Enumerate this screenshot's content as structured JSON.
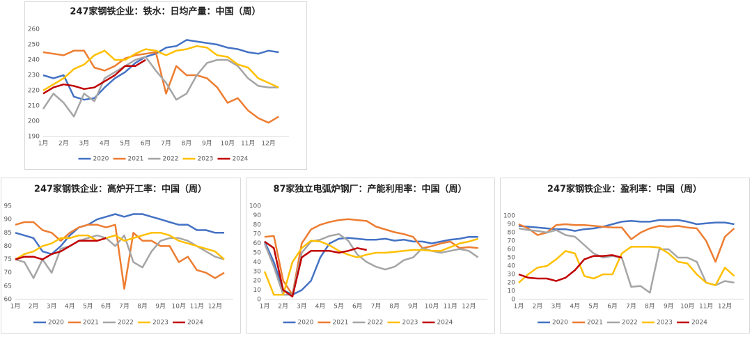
{
  "chart_data": [
    {
      "type": "line",
      "title": "247家钢铁企业：铁水：日均产量：中国（周）",
      "categories": [
        "1月",
        null,
        "2月",
        null,
        "3月",
        null,
        "4月",
        null,
        "5月",
        null,
        "6月",
        null,
        "7月",
        null,
        "8月",
        null,
        "9月",
        null,
        "10月",
        null,
        "11月",
        null,
        "12月",
        null
      ],
      "ylim": [
        190,
        260
      ],
      "yticks": [
        190,
        200,
        210,
        220,
        230,
        240,
        250,
        260
      ],
      "grid": false,
      "legend": "bottom",
      "series": [
        {
          "name": "2020",
          "color": "#4472c4",
          "values": [
            230,
            228,
            230,
            216,
            214,
            215,
            222,
            228,
            232,
            238,
            242,
            244,
            248,
            249,
            253,
            252,
            251,
            250,
            248,
            247,
            245,
            244,
            246,
            245
          ]
        },
        {
          "name": "2021",
          "color": "#ed7d31",
          "values": [
            245,
            244,
            243,
            246,
            246,
            235,
            233,
            236,
            241,
            243,
            244,
            245,
            218,
            236,
            230,
            230,
            228,
            222,
            212,
            215,
            207,
            202,
            199,
            203
          ]
        },
        {
          "name": "2022",
          "color": "#a5a5a5",
          "values": [
            208,
            218,
            212,
            203,
            218,
            213,
            228,
            232,
            236,
            240,
            242,
            233,
            225,
            214,
            218,
            230,
            238,
            240,
            240,
            236,
            228,
            223,
            222,
            222
          ]
        },
        {
          "name": "2023",
          "color": "#ffc000",
          "values": [
            220,
            224,
            228,
            234,
            237,
            243,
            246,
            240,
            240,
            244,
            247,
            246,
            243,
            246,
            247,
            249,
            248,
            243,
            242,
            237,
            235,
            228,
            225,
            222
          ]
        },
        {
          "name": "2024",
          "color": "#c00000",
          "values": [
            218,
            222,
            224,
            223,
            221,
            222,
            226,
            230,
            236,
            236,
            240,
            null,
            null,
            null,
            null,
            null,
            null,
            null,
            null,
            null,
            null,
            null,
            null,
            null
          ]
        }
      ]
    },
    {
      "type": "line",
      "title": "247家钢铁企业：高炉开工率：中国（周）",
      "categories": [
        "1月",
        null,
        "2月",
        null,
        "3月",
        null,
        "4月",
        null,
        "5月",
        null,
        "6月",
        null,
        "7月",
        null,
        "8月",
        null,
        "9月",
        null,
        "10月",
        null,
        "11月",
        null,
        "12月",
        null
      ],
      "ylim": [
        60,
        95
      ],
      "yticks": [
        60,
        65,
        70,
        75,
        80,
        85,
        90,
        95
      ],
      "grid": false,
      "legend": "bottom",
      "series": [
        {
          "name": "2020",
          "color": "#4472c4",
          "values": [
            85,
            84,
            83,
            78,
            77,
            80,
            84,
            87,
            88,
            90,
            91,
            92,
            91,
            92,
            92,
            91,
            90,
            89,
            88,
            88,
            86,
            86,
            85,
            85
          ]
        },
        {
          "name": "2021",
          "color": "#ed7d31",
          "values": [
            88,
            89,
            89,
            86,
            85,
            82,
            85,
            87,
            88,
            88,
            87,
            88,
            64,
            85,
            82,
            82,
            80,
            80,
            74,
            76,
            71,
            70,
            68,
            70
          ]
        },
        {
          "name": "2022",
          "color": "#a5a5a5",
          "values": [
            75,
            74,
            68,
            75,
            70,
            79,
            80,
            82,
            83,
            84,
            83,
            80,
            84,
            74,
            72,
            78,
            82,
            83,
            83,
            82,
            80,
            78,
            76,
            75
          ]
        },
        {
          "name": "2023",
          "color": "#ffc000",
          "values": [
            75,
            77,
            78,
            80,
            81,
            83,
            83,
            84,
            84,
            82,
            83,
            84,
            82,
            83,
            84,
            85,
            85,
            84,
            82,
            81,
            80,
            79,
            78,
            75
          ]
        },
        {
          "name": "2024",
          "color": "#c00000",
          "values": [
            75,
            76,
            76,
            75,
            77,
            78,
            80,
            82,
            82,
            82,
            83,
            null,
            null,
            null,
            null,
            null,
            null,
            null,
            null,
            null,
            null,
            null,
            null,
            null
          ]
        }
      ]
    },
    {
      "type": "line",
      "title": "87家独立电弧炉钢厂：产能利用率：中国（周）",
      "categories": [
        "1月",
        null,
        "2月",
        null,
        "3月",
        null,
        "4月",
        null,
        "5月",
        null,
        "6月",
        null,
        "7月",
        null,
        "8月",
        null,
        "9月",
        null,
        "10月",
        null,
        "11月",
        null,
        "12月",
        null
      ],
      "ylim": [
        0,
        100
      ],
      "yticks": [
        0,
        10,
        20,
        30,
        40,
        50,
        60,
        70,
        80,
        90,
        100
      ],
      "grid": false,
      "legend": "bottom",
      "series": [
        {
          "name": "2020",
          "color": "#4472c4",
          "values": [
            62,
            40,
            10,
            5,
            10,
            20,
            45,
            60,
            65,
            66,
            65,
            64,
            64,
            65,
            63,
            64,
            62,
            62,
            60,
            62,
            64,
            65,
            67,
            67
          ]
        },
        {
          "name": "2021",
          "color": "#ed7d31",
          "values": [
            67,
            68,
            20,
            5,
            60,
            75,
            80,
            83,
            85,
            86,
            85,
            84,
            78,
            75,
            72,
            70,
            67,
            55,
            57,
            60,
            62,
            55,
            56,
            55
          ]
        },
        {
          "name": "2022",
          "color": "#a5a5a5",
          "values": [
            60,
            35,
            5,
            5,
            50,
            62,
            64,
            68,
            70,
            63,
            48,
            40,
            35,
            32,
            35,
            42,
            45,
            55,
            52,
            50,
            52,
            54,
            52,
            45
          ]
        },
        {
          "name": "2023",
          "color": "#ffc000",
          "values": [
            30,
            5,
            5,
            40,
            55,
            63,
            62,
            58,
            52,
            48,
            45,
            48,
            50,
            50,
            51,
            52,
            53,
            53,
            52,
            52,
            56,
            60,
            62,
            65
          ]
        },
        {
          "name": "2024",
          "color": "#c00000",
          "values": [
            62,
            55,
            10,
            3,
            45,
            52,
            52,
            52,
            50,
            52,
            55,
            53,
            null,
            null,
            null,
            null,
            null,
            null,
            null,
            null,
            null,
            null,
            null,
            null
          ]
        }
      ]
    },
    {
      "type": "line",
      "title": "247家钢铁企业：盈利率：中国（周）",
      "categories": [
        "1月",
        null,
        "2月",
        null,
        "3月",
        null,
        "4月",
        null,
        "5月",
        null,
        "6月",
        null,
        "7月",
        null,
        "8月",
        null,
        "9月",
        null,
        "10月",
        null,
        "11月",
        null,
        "12月",
        null
      ],
      "ylim": [
        0,
        100
      ],
      "yticks": [
        0,
        10,
        20,
        30,
        40,
        50,
        60,
        70,
        80,
        90,
        100
      ],
      "grid": false,
      "legend": "bottom",
      "series": [
        {
          "name": "2020",
          "color": "#4472c4",
          "values": [
            88,
            87,
            86,
            85,
            84,
            84,
            82,
            84,
            85,
            87,
            90,
            93,
            94,
            93,
            93,
            95,
            95,
            95,
            93,
            90,
            91,
            92,
            92,
            90
          ]
        },
        {
          "name": "2021",
          "color": "#ed7d31",
          "values": [
            90,
            85,
            77,
            80,
            89,
            90,
            89,
            89,
            88,
            87,
            86,
            86,
            72,
            80,
            85,
            88,
            87,
            88,
            86,
            85,
            70,
            45,
            75,
            85
          ]
        },
        {
          "name": "2022",
          "color": "#a5a5a5",
          "values": [
            85,
            83,
            82,
            80,
            83,
            77,
            75,
            65,
            55,
            50,
            52,
            50,
            15,
            16,
            8,
            60,
            60,
            50,
            50,
            45,
            20,
            17,
            22,
            20
          ]
        },
        {
          "name": "2023",
          "color": "#ffc000",
          "values": [
            20,
            30,
            38,
            40,
            48,
            58,
            55,
            28,
            25,
            30,
            30,
            55,
            63,
            63,
            63,
            62,
            55,
            45,
            43,
            30,
            20,
            17,
            38,
            28
          ]
        },
        {
          "name": "2024",
          "color": "#c00000",
          "values": [
            30,
            26,
            25,
            25,
            22,
            26,
            35,
            48,
            52,
            52,
            53,
            50,
            null,
            null,
            null,
            null,
            null,
            null,
            null,
            null,
            null,
            null,
            null,
            null
          ]
        }
      ]
    }
  ]
}
